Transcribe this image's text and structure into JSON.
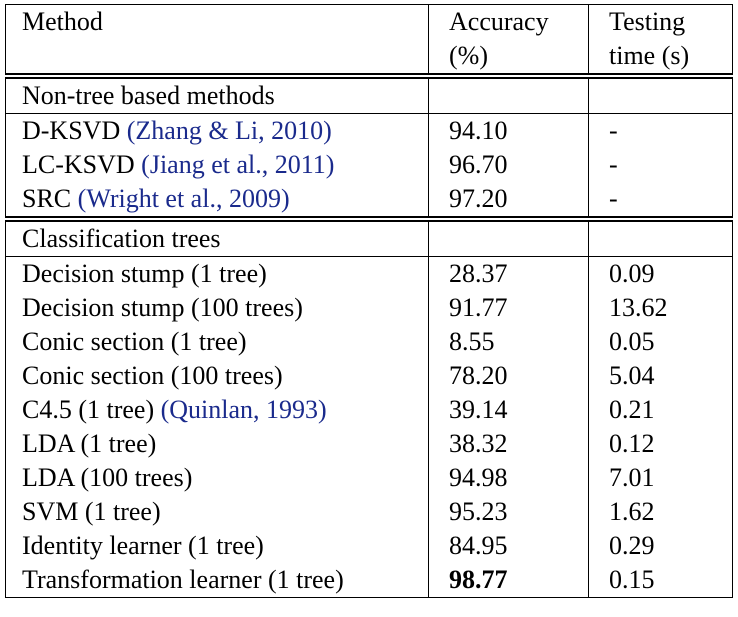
{
  "header": {
    "method": "Method",
    "accuracy": "Accuracy (%)",
    "time": "Testing time (s)"
  },
  "sections": [
    {
      "title": "Non-tree based methods",
      "rows": [
        {
          "method": "D-KSVD",
          "cite": "(Zhang & Li, 2010)",
          "accuracy": "94.10",
          "time": "-"
        },
        {
          "method": "LC-KSVD",
          "cite": "(Jiang et al., 2011)",
          "accuracy": "96.70",
          "time": "-"
        },
        {
          "method": "SRC",
          "cite": "(Wright et al., 2009)",
          "accuracy": "97.20",
          "time": "-"
        }
      ]
    },
    {
      "title": "Classification trees",
      "rows": [
        {
          "method": "Decision stump (1 tree)",
          "accuracy": "28.37",
          "time": "0.09"
        },
        {
          "method": "Decision stump (100 trees)",
          "accuracy": "91.77",
          "time": "13.62"
        },
        {
          "method": "Conic section (1 tree)",
          "accuracy": "8.55",
          "time": "0.05"
        },
        {
          "method": "Conic section (100 trees)",
          "accuracy": "78.20",
          "time": "5.04"
        },
        {
          "method": "C4.5 (1 tree)",
          "cite": "(Quinlan, 1993)",
          "accuracy": "39.14",
          "time": "0.21"
        },
        {
          "method": "LDA (1 tree)",
          "accuracy": "38.32",
          "time": "0.12"
        },
        {
          "method": "LDA (100 trees)",
          "accuracy": "94.98",
          "time": "7.01"
        },
        {
          "method": "SVM (1 tree)",
          "accuracy": "95.23",
          "time": "1.62"
        },
        {
          "method": "Identity learner (1 tree)",
          "accuracy": "84.95",
          "time": "0.29"
        },
        {
          "method": "Transformation learner (1 tree)",
          "accuracy": "98.77",
          "time": "0.15",
          "bold": true
        }
      ]
    }
  ]
}
